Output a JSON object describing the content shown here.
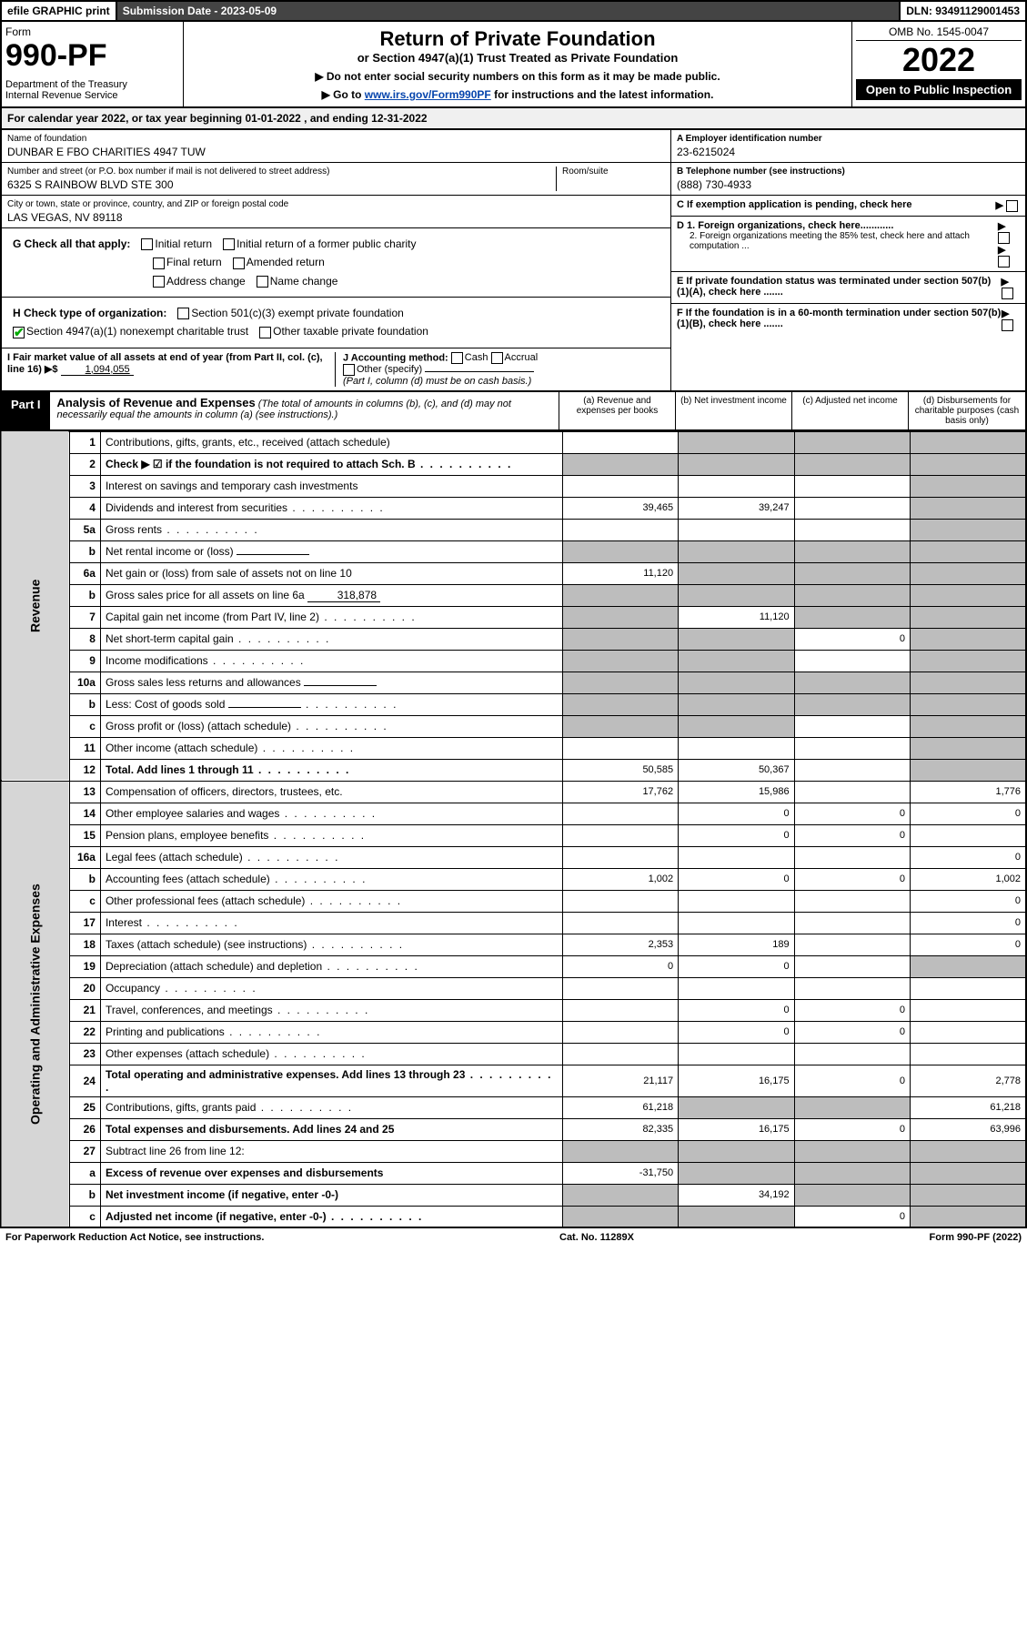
{
  "topbar": {
    "efile": "efile GRAPHIC print",
    "subdate_label": "Submission Date - ",
    "subdate": "2023-05-09",
    "dln": "DLN: 93491129001453"
  },
  "header": {
    "form_word": "Form",
    "form_num": "990-PF",
    "dept": "Department of the Treasury\nInternal Revenue Service",
    "title": "Return of Private Foundation",
    "subtitle": "or Section 4947(a)(1) Trust Treated as Private Foundation",
    "note1": "▶ Do not enter social security numbers on this form as it may be made public.",
    "note2": "▶ Go to ",
    "link": "www.irs.gov/Form990PF",
    "note3": " for instructions and the latest information.",
    "omb": "OMB No. 1545-0047",
    "year": "2022",
    "open": "Open to Public Inspection"
  },
  "cal": "For calendar year 2022, or tax year beginning 01-01-2022              , and ending 12-31-2022",
  "entity": {
    "name_lbl": "Name of foundation",
    "name": "DUNBAR E FBO CHARITIES 4947 TUW",
    "addr_lbl": "Number and street (or P.O. box number if mail is not delivered to street address)",
    "addr": "6325 S RAINBOW BLVD STE 300",
    "room_lbl": "Room/suite",
    "city_lbl": "City or town, state or province, country, and ZIP or foreign postal code",
    "city": "LAS VEGAS, NV  89118",
    "a_lbl": "A Employer identification number",
    "a_val": "23-6215024",
    "b_lbl": "B Telephone number (see instructions)",
    "b_val": "(888) 730-4933",
    "c_lbl": "C If exemption application is pending, check here",
    "d1": "D 1. Foreign organizations, check here............",
    "d2": "2. Foreign organizations meeting the 85% test, check here and attach computation ...",
    "e": "E  If private foundation status was terminated under section 507(b)(1)(A), check here .......",
    "f": "F  If the foundation is in a 60-month termination under section 507(b)(1)(B), check here .......",
    "g_lbl": "G Check all that apply:",
    "g_opts": [
      "Initial return",
      "Final return",
      "Address change",
      "Initial return of a former public charity",
      "Amended return",
      "Name change"
    ],
    "h_lbl": "H Check type of organization:",
    "h_501c3": "Section 501(c)(3) exempt private foundation",
    "h_4947": "Section 4947(a)(1) nonexempt charitable trust",
    "h_other": "Other taxable private foundation",
    "i_lbl": "I Fair market value of all assets at end of year (from Part II, col. (c), line 16) ▶$",
    "i_val": "1,094,055",
    "j_lbl": "J Accounting method:",
    "j_cash": "Cash",
    "j_accr": "Accrual",
    "j_other": "Other (specify)",
    "j_note": "(Part I, column (d) must be on cash basis.)"
  },
  "part1": {
    "tab": "Part I",
    "title": "Analysis of Revenue and Expenses",
    "note": "(The total of amounts in columns (b), (c), and (d) may not necessarily equal the amounts in column (a) (see instructions).)",
    "cols": {
      "a": "(a) Revenue and expenses per books",
      "b": "(b) Net investment income",
      "c": "(c) Adjusted net income",
      "d": "(d) Disbursements for charitable purposes (cash basis only)"
    },
    "side_rev": "Revenue",
    "side_exp": "Operating and Administrative Expenses",
    "rows": [
      {
        "n": "1",
        "d": "Contributions, gifts, grants, etc., received (attach schedule)",
        "a": "",
        "b": "sh",
        "c": "sh",
        "e": "sh"
      },
      {
        "n": "2",
        "d": "Check ▶ ☑ if the foundation is not required to attach Sch. B",
        "dots": true,
        "a": "sh",
        "b": "sh",
        "c": "sh",
        "e": "sh",
        "bold": true,
        "chk": true
      },
      {
        "n": "3",
        "d": "Interest on savings and temporary cash investments",
        "a": "",
        "b": "",
        "c": "",
        "e": "sh"
      },
      {
        "n": "4",
        "d": "Dividends and interest from securities",
        "dots": true,
        "a": "39,465",
        "b": "39,247",
        "c": "",
        "e": "sh"
      },
      {
        "n": "5a",
        "d": "Gross rents",
        "dots": true,
        "a": "",
        "b": "",
        "c": "",
        "e": "sh"
      },
      {
        "n": "b",
        "d": "Net rental income or (loss)",
        "inline": "",
        "a": "sh",
        "b": "sh",
        "c": "sh",
        "e": "sh"
      },
      {
        "n": "6a",
        "d": "Net gain or (loss) from sale of assets not on line 10",
        "a": "11,120",
        "b": "sh",
        "c": "sh",
        "e": "sh"
      },
      {
        "n": "b",
        "d": "Gross sales price for all assets on line 6a",
        "inline": "318,878",
        "a": "sh",
        "b": "sh",
        "c": "sh",
        "e": "sh"
      },
      {
        "n": "7",
        "d": "Capital gain net income (from Part IV, line 2)",
        "dots": true,
        "a": "sh",
        "b": "11,120",
        "c": "sh",
        "e": "sh"
      },
      {
        "n": "8",
        "d": "Net short-term capital gain",
        "dots": true,
        "a": "sh",
        "b": "sh",
        "c": "0",
        "e": "sh"
      },
      {
        "n": "9",
        "d": "Income modifications",
        "dots": true,
        "a": "sh",
        "b": "sh",
        "c": "",
        "e": "sh"
      },
      {
        "n": "10a",
        "d": "Gross sales less returns and allowances",
        "inline": "",
        "a": "sh",
        "b": "sh",
        "c": "sh",
        "e": "sh"
      },
      {
        "n": "b",
        "d": "Less: Cost of goods sold",
        "dots": true,
        "inline": "",
        "a": "sh",
        "b": "sh",
        "c": "sh",
        "e": "sh"
      },
      {
        "n": "c",
        "d": "Gross profit or (loss) (attach schedule)",
        "dots": true,
        "a": "sh",
        "b": "sh",
        "c": "",
        "e": "sh"
      },
      {
        "n": "11",
        "d": "Other income (attach schedule)",
        "dots": true,
        "a": "",
        "b": "",
        "c": "",
        "e": "sh"
      },
      {
        "n": "12",
        "d": "Total. Add lines 1 through 11",
        "dots": true,
        "a": "50,585",
        "b": "50,367",
        "c": "",
        "e": "sh",
        "bold": true
      }
    ],
    "exp_rows": [
      {
        "n": "13",
        "d": "Compensation of officers, directors, trustees, etc.",
        "a": "17,762",
        "b": "15,986",
        "c": "",
        "e": "1,776"
      },
      {
        "n": "14",
        "d": "Other employee salaries and wages",
        "dots": true,
        "a": "",
        "b": "0",
        "c": "0",
        "e": "0"
      },
      {
        "n": "15",
        "d": "Pension plans, employee benefits",
        "dots": true,
        "a": "",
        "b": "0",
        "c": "0",
        "e": ""
      },
      {
        "n": "16a",
        "d": "Legal fees (attach schedule)",
        "dots": true,
        "a": "",
        "b": "",
        "c": "",
        "e": "0"
      },
      {
        "n": "b",
        "d": "Accounting fees (attach schedule)",
        "dots": true,
        "a": "1,002",
        "b": "0",
        "c": "0",
        "e": "1,002"
      },
      {
        "n": "c",
        "d": "Other professional fees (attach schedule)",
        "dots": true,
        "a": "",
        "b": "",
        "c": "",
        "e": "0"
      },
      {
        "n": "17",
        "d": "Interest",
        "dots": true,
        "a": "",
        "b": "",
        "c": "",
        "e": "0"
      },
      {
        "n": "18",
        "d": "Taxes (attach schedule) (see instructions)",
        "dots": true,
        "a": "2,353",
        "b": "189",
        "c": "",
        "e": "0"
      },
      {
        "n": "19",
        "d": "Depreciation (attach schedule) and depletion",
        "dots": true,
        "a": "0",
        "b": "0",
        "c": "",
        "e": "sh"
      },
      {
        "n": "20",
        "d": "Occupancy",
        "dots": true,
        "a": "",
        "b": "",
        "c": "",
        "e": ""
      },
      {
        "n": "21",
        "d": "Travel, conferences, and meetings",
        "dots": true,
        "a": "",
        "b": "0",
        "c": "0",
        "e": ""
      },
      {
        "n": "22",
        "d": "Printing and publications",
        "dots": true,
        "a": "",
        "b": "0",
        "c": "0",
        "e": ""
      },
      {
        "n": "23",
        "d": "Other expenses (attach schedule)",
        "dots": true,
        "a": "",
        "b": "",
        "c": "",
        "e": ""
      },
      {
        "n": "24",
        "d": "Total operating and administrative expenses. Add lines 13 through 23",
        "dots": true,
        "a": "21,117",
        "b": "16,175",
        "c": "0",
        "e": "2,778",
        "bold": true
      },
      {
        "n": "25",
        "d": "Contributions, gifts, grants paid",
        "dots": true,
        "a": "61,218",
        "b": "sh",
        "c": "sh",
        "e": "61,218"
      },
      {
        "n": "26",
        "d": "Total expenses and disbursements. Add lines 24 and 25",
        "a": "82,335",
        "b": "16,175",
        "c": "0",
        "e": "63,996",
        "bold": true
      },
      {
        "n": "27",
        "d": "Subtract line 26 from line 12:",
        "a": "sh",
        "b": "sh",
        "c": "sh",
        "e": "sh"
      },
      {
        "n": "a",
        "d": "Excess of revenue over expenses and disbursements",
        "a": "-31,750",
        "b": "sh",
        "c": "sh",
        "e": "sh",
        "bold": true
      },
      {
        "n": "b",
        "d": "Net investment income (if negative, enter -0-)",
        "a": "sh",
        "b": "34,192",
        "c": "sh",
        "e": "sh",
        "bold": true
      },
      {
        "n": "c",
        "d": "Adjusted net income (if negative, enter -0-)",
        "dots": true,
        "a": "sh",
        "b": "sh",
        "c": "0",
        "e": "sh",
        "bold": true
      }
    ]
  },
  "footer": {
    "l": "For Paperwork Reduction Act Notice, see instructions.",
    "c": "Cat. No. 11289X",
    "r": "Form 990-PF (2022)"
  }
}
